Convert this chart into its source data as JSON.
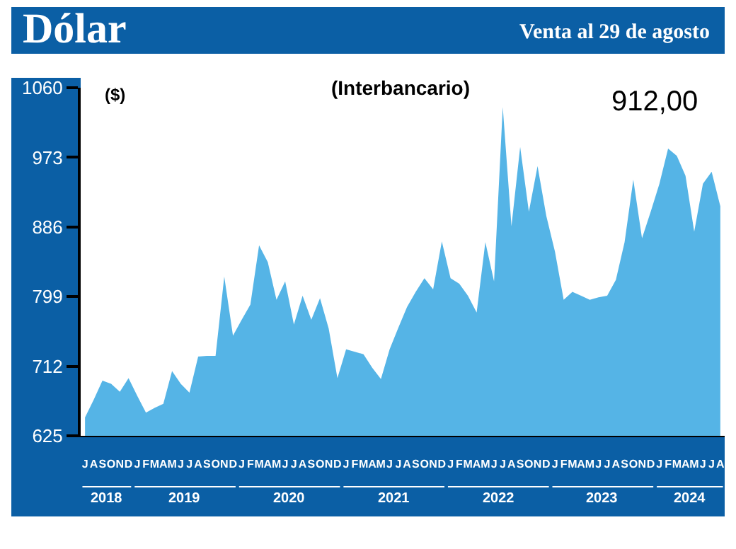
{
  "chart_data": {
    "type": "area",
    "title": "Dólar",
    "subtitle": "Venta al 29 de agosto",
    "ylabel": "($)",
    "annotations": [
      "(Interbancario)",
      "912,00",
      "2018",
      "2019",
      "2020",
      "2021",
      "2022",
      "2023",
      "2024"
    ],
    "categories": [
      "J",
      "A",
      "S",
      "O",
      "N",
      "D",
      "J",
      "F",
      "M",
      "A",
      "M",
      "J",
      "J",
      "A",
      "S",
      "O",
      "N",
      "D",
      "J",
      "F",
      "M",
      "A",
      "M",
      "J",
      "J",
      "A",
      "S",
      "O",
      "N",
      "D",
      "J",
      "F",
      "M",
      "A",
      "M",
      "J",
      "J",
      "A",
      "S",
      "O",
      "N",
      "D",
      "J",
      "F",
      "M",
      "A",
      "M",
      "J",
      "J",
      "A",
      "S",
      "O",
      "N",
      "D",
      "J",
      "F",
      "M",
      "A",
      "M",
      "J",
      "J",
      "A",
      "S",
      "O",
      "N",
      "D",
      "J",
      "F",
      "M",
      "A",
      "M",
      "J",
      "J",
      "A"
    ],
    "series": [
      {
        "color": "#55b4e6",
        "values": [
          648,
          670,
          694,
          690,
          680,
          697,
          675,
          654,
          660,
          665,
          706,
          690,
          679,
          724,
          725,
          725,
          824,
          750,
          770,
          789,
          863,
          842,
          795,
          818,
          764,
          800,
          770,
          797,
          759,
          697,
          733,
          730,
          727,
          710,
          696,
          733,
          760,
          786,
          805,
          822,
          808,
          868,
          822,
          815,
          800,
          779,
          867,
          818,
          1036,
          887,
          986,
          905,
          962,
          900,
          855,
          795,
          805,
          800,
          795,
          798,
          800,
          820,
          867,
          945,
          872,
          905,
          940,
          984,
          975,
          950,
          880,
          940,
          955,
          912
        ]
      }
    ],
    "ylim": [
      625,
      1060
    ],
    "yticks": [
      625,
      712,
      799,
      886,
      973,
      1060
    ]
  }
}
